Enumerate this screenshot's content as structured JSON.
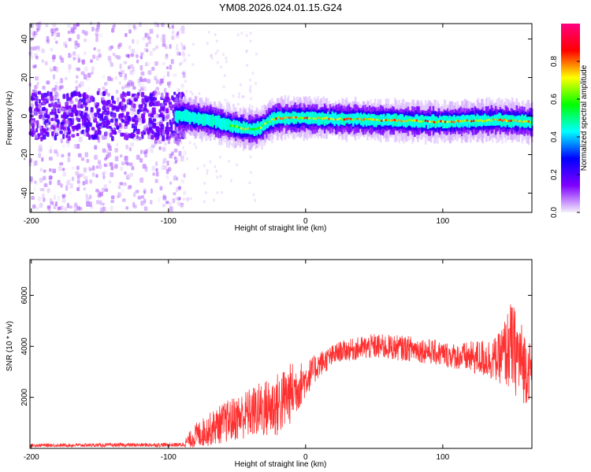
{
  "title": "YM08.2026.024.01.15.G24",
  "chart_data": [
    {
      "type": "heatmap",
      "name": "spectrogram",
      "xlabel": "Height of straight line (km)",
      "ylabel": "Frequency (Hz)",
      "xlim": [
        -201,
        165
      ],
      "ylim": [
        -50,
        48
      ],
      "xticks": [
        -200,
        -100,
        0,
        100
      ],
      "yticks": [
        40,
        20,
        0,
        -20,
        -40
      ],
      "colorbar": {
        "label": "Normalized spectral amplitude",
        "range": [
          0,
          1
        ],
        "ticks": [
          0.0,
          0.2,
          0.4,
          0.6,
          0.8
        ],
        "colors": [
          "#f4f0fb",
          "#8000ff",
          "#0000ff",
          "#00ffff",
          "#00ff00",
          "#ffff00",
          "#ff0000",
          "#ff0080"
        ]
      },
      "ridge": [
        {
          "x": -200,
          "f": 0
        },
        {
          "x": -90,
          "f": 0
        },
        {
          "x": -70,
          "f": -2
        },
        {
          "x": -55,
          "f": -5
        },
        {
          "x": -40,
          "f": -7
        },
        {
          "x": -33,
          "f": -6
        },
        {
          "x": -25,
          "f": -2
        },
        {
          "x": -20,
          "f": -1
        },
        {
          "x": 0,
          "f": -1
        },
        {
          "x": 50,
          "f": -2
        },
        {
          "x": 100,
          "f": -3
        },
        {
          "x": 140,
          "f": -2
        },
        {
          "x": 165,
          "f": -3
        }
      ],
      "colors": {
        "series": "#ff0000"
      }
    },
    {
      "type": "line",
      "name": "snr",
      "xlabel": "Height of straight line (km)",
      "ylabel": "SNR (10 * v/v)",
      "xlim": [
        -201,
        165
      ],
      "ylim": [
        0,
        7400
      ],
      "xticks": [
        -200,
        -100,
        0,
        100
      ],
      "yticks": [
        6000,
        4000,
        2000
      ],
      "envelope": [
        {
          "x": -200,
          "mean": 120,
          "amp": 60
        },
        {
          "x": -90,
          "mean": 140,
          "amp": 80
        },
        {
          "x": -80,
          "mean": 500,
          "amp": 500
        },
        {
          "x": -60,
          "mean": 1000,
          "amp": 800
        },
        {
          "x": -40,
          "mean": 1400,
          "amp": 1000
        },
        {
          "x": -20,
          "mean": 1700,
          "amp": 1300
        },
        {
          "x": -10,
          "mean": 2200,
          "amp": 1200
        },
        {
          "x": 0,
          "mean": 2700,
          "amp": 700
        },
        {
          "x": 10,
          "mean": 3300,
          "amp": 500
        },
        {
          "x": 25,
          "mean": 3800,
          "amp": 400
        },
        {
          "x": 50,
          "mean": 4000,
          "amp": 500
        },
        {
          "x": 80,
          "mean": 3900,
          "amp": 500
        },
        {
          "x": 110,
          "mean": 3600,
          "amp": 500
        },
        {
          "x": 140,
          "mean": 3500,
          "amp": 900
        },
        {
          "x": 150,
          "mean": 4000,
          "amp": 1800
        },
        {
          "x": 160,
          "mean": 3200,
          "amp": 1500
        },
        {
          "x": 165,
          "mean": 3000,
          "amp": 1000
        }
      ],
      "colors": {
        "series": "#ff3030"
      }
    }
  ]
}
